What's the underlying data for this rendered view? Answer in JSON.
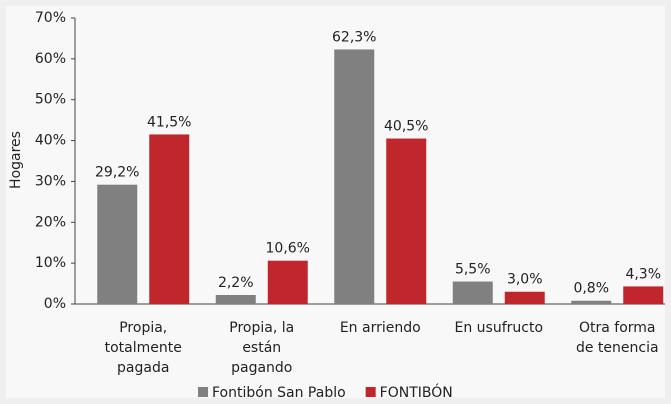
{
  "chart_data": {
    "type": "bar",
    "y_label": "Hogares",
    "categories": [
      [
        "Propia,",
        "totalmente",
        "pagada"
      ],
      [
        "Propia, la",
        "están",
        "pagando"
      ],
      [
        "En arriendo"
      ],
      [
        "En usufructo"
      ],
      [
        "Otra forma",
        "de tenencia"
      ]
    ],
    "series": [
      {
        "name": "Fontibón San Pablo",
        "color": "#808080",
        "values": [
          29.2,
          2.2,
          62.3,
          5.5,
          0.8
        ],
        "value_labels": [
          "29,2%",
          "2,2%",
          "62,3%",
          "5,5%",
          "0,8%"
        ]
      },
      {
        "name": "FONTIBÓN",
        "color": "#c0272d",
        "values": [
          41.5,
          10.6,
          40.5,
          3.0,
          4.3
        ],
        "value_labels": [
          "41,5%",
          "10,6%",
          "40,5%",
          "3,0%",
          "4,3%"
        ]
      }
    ],
    "ylim": [
      0,
      70
    ],
    "yticks": [
      {
        "value": 0,
        "label": "0%"
      },
      {
        "value": 10,
        "label": "10%"
      },
      {
        "value": 20,
        "label": "20%"
      },
      {
        "value": 30,
        "label": "30%"
      },
      {
        "value": 40,
        "label": "40%"
      },
      {
        "value": 50,
        "label": "50%"
      },
      {
        "value": 60,
        "label": "60%"
      },
      {
        "value": 70,
        "label": "70%"
      }
    ],
    "legend": "bottom"
  }
}
